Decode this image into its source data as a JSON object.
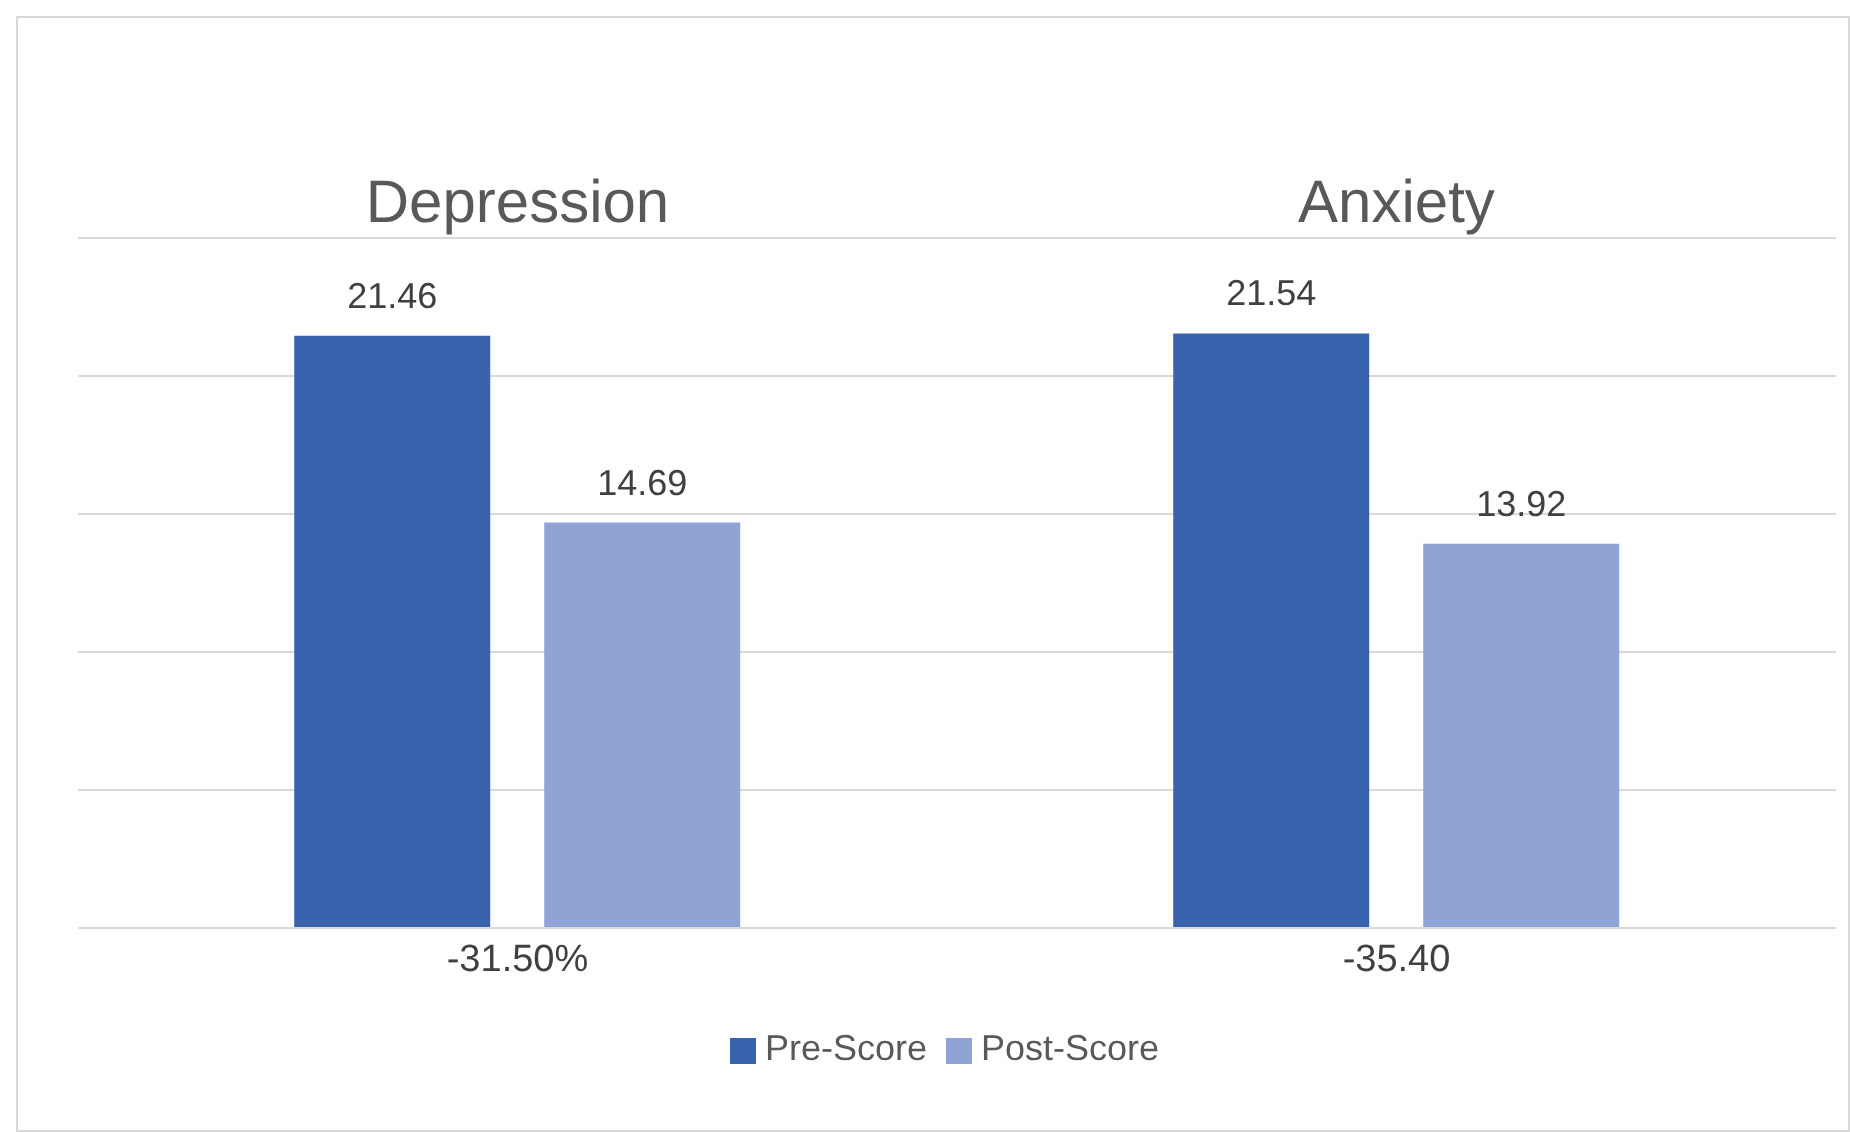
{
  "chart_data": {
    "type": "bar",
    "categories": [
      "-31.50%",
      "-35.40"
    ],
    "series": [
      {
        "name": "Pre-Score",
        "color": "#3a63ad",
        "values": [
          21.46,
          21.54
        ]
      },
      {
        "name": "Post-Score",
        "color": "#8fa3d4",
        "values": [
          14.69,
          13.92
        ]
      }
    ],
    "annotations": [
      "Depression",
      "Anxiety"
    ],
    "ylim": [
      0,
      25
    ],
    "yticks": [
      {
        "value": 0,
        "label": null
      },
      {
        "value": 5,
        "label": null
      },
      {
        "value": 10,
        "label": null
      },
      {
        "value": 15,
        "label": null
      },
      {
        "value": 20,
        "label": null
      },
      {
        "value": 25,
        "label": null
      }
    ],
    "tick_labels": "x",
    "grid": "y",
    "legend": "bottom",
    "data_labels": true
  }
}
